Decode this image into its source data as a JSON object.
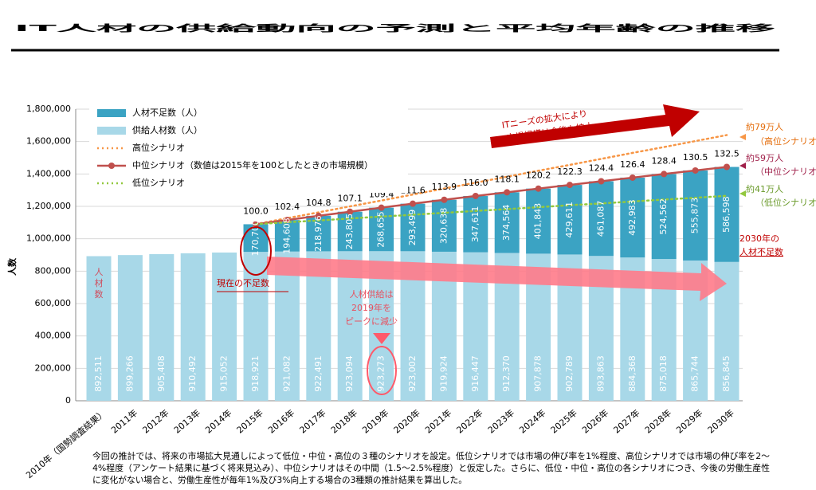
{
  "chart_data": {
    "type": "bar",
    "title": "IT人材の供給動向の予測と平均年齢の推移",
    "y_label": "人数",
    "categories": [
      "2010年（国勢調査結果）",
      "2011年",
      "2012年",
      "2013年",
      "2014年",
      "2015年",
      "2016年",
      "2017年",
      "2018年",
      "2019年",
      "2020年",
      "2021年",
      "2022年",
      "2023年",
      "2024年",
      "2025年",
      "2026年",
      "2027年",
      "2028年",
      "2029年",
      "2030年"
    ],
    "ylim": [
      0,
      1800000
    ],
    "yticks": [
      {
        "value": 0,
        "label": "0"
      },
      {
        "value": 200000,
        "label": "200,000"
      },
      {
        "value": 400000,
        "label": "400,000"
      },
      {
        "value": 600000,
        "label": "600,000"
      },
      {
        "value": 800000,
        "label": "800,000"
      },
      {
        "value": 1000000,
        "label": "1,000,000"
      },
      {
        "value": 1200000,
        "label": "1,200,000"
      },
      {
        "value": 1400000,
        "label": "1,400,000"
      },
      {
        "value": 1600000,
        "label": "1,600,000"
      },
      {
        "value": 1800000,
        "label": "1,800,000"
      }
    ],
    "grid": true,
    "stacked": true,
    "series": [
      {
        "name": "供給人材数（人）",
        "type": "bar",
        "color": "#a8d8e8",
        "values": [
          892511,
          899266,
          905408,
          910492,
          915052,
          918921,
          921082,
          922491,
          923094,
          923273,
          923002,
          919924,
          916447,
          912370,
          907878,
          902789,
          893863,
          884368,
          875018,
          865744,
          856845
        ],
        "value_labels": [
          "892,511",
          "899,266",
          "905,408",
          "910,492",
          "915,052",
          "918,921",
          "921,082",
          "922,491",
          "923,094",
          "923,273",
          "923,002",
          "919,924",
          "916,447",
          "912,370",
          "907,878",
          "902,789",
          "893,863",
          "884,368",
          "875,018",
          "865,744",
          "856,845"
        ]
      },
      {
        "name": "人材不足数（人）",
        "type": "bar",
        "color": "#3ba3c3",
        "values": [
          null,
          null,
          null,
          null,
          null,
          170700,
          194608,
          218976,
          243805,
          268655,
          293499,
          320638,
          347611,
          374564,
          401843,
          429611,
          461087,
          492983,
          524562,
          555873,
          586598
        ],
        "value_labels": [
          null,
          null,
          null,
          null,
          null,
          "170,700",
          "194,608",
          "218,976",
          "243,805",
          "268,655",
          "293,499",
          "320,638",
          "347,611",
          "374,564",
          "401,843",
          "429,611",
          "461,087",
          "492,983",
          "524,562",
          "555,873",
          "586,598"
        ]
      },
      {
        "name": "高位シナリオ",
        "type": "line",
        "style": "dotted",
        "color": "#f79646",
        "values": [
          null,
          null,
          null,
          null,
          null,
          1090000,
          1127000,
          1163000,
          1200000,
          1236000,
          1273000,
          1310000,
          1346000,
          1383000,
          1420000,
          1456000,
          1493000,
          1530000,
          1566000,
          1603000,
          1640000
        ]
      },
      {
        "name": "中位シナリオ（数値は2015年を100としたときの市場規模）",
        "type": "index-line",
        "color": "#c0504d",
        "values": [
          null,
          null,
          null,
          null,
          null,
          100.0,
          102.4,
          104.8,
          107.1,
          109.4,
          111.6,
          113.9,
          116.0,
          118.1,
          120.2,
          122.3,
          124.4,
          126.4,
          128.4,
          130.5,
          132.5
        ],
        "value_labels": [
          null,
          null,
          null,
          null,
          null,
          "100.0",
          "102.4",
          "104.8",
          "107.1",
          "109.4",
          "111.6",
          "113.9",
          "116.0",
          "118.1",
          "120.2",
          "122.3",
          "124.4",
          "126.4",
          "128.4",
          "130.5",
          "132.5"
        ]
      },
      {
        "name": "低位シナリオ",
        "type": "line",
        "style": "dotted",
        "color": "#92c83e",
        "values": [
          null,
          null,
          null,
          null,
          null,
          1090000,
          1102000,
          1113000,
          1125000,
          1137000,
          1148000,
          1160000,
          1172000,
          1183000,
          1195000,
          1207000,
          1218000,
          1230000,
          1242000,
          1253000,
          1265000
        ]
      }
    ],
    "annotations": {
      "high": [
        "約79万人",
        "（高位シナリオ）"
      ],
      "mid": [
        "約59万人",
        "（中位シナリオ）"
      ],
      "low": [
        "約41万人",
        "（低位シナリオ）"
      ],
      "shortage_2030": [
        "2030年の",
        "人材不足数"
      ],
      "market": [
        "ITニーズの拡大により",
        "市場規模は今後も拡大"
      ],
      "current": "現在の不足数",
      "peak": [
        "人材供給は",
        "2019年を",
        "ピークに減少"
      ],
      "workers": [
        "人",
        "材",
        "数"
      ]
    },
    "footnote": [
      "今回の推計では、将来の市場拡大見通しによって低位・中位・高位の３種のシナリオを設定。低位シナリオでは市場の伸び率を1%程度、高位シナリオでは市場の伸び率を2～",
      "4%程度（アンケート結果に基づく将来見込み）、中位シナリオはその中間（1.5～2.5%程度）と仮定した。さらに、低位・中位・高位の各シナリオにつき、今後の労働生産性",
      "に変化がない場合と、労働生産性が毎年1%及び3%向上する場合の3種類の推計結果を算出した。"
    ]
  }
}
